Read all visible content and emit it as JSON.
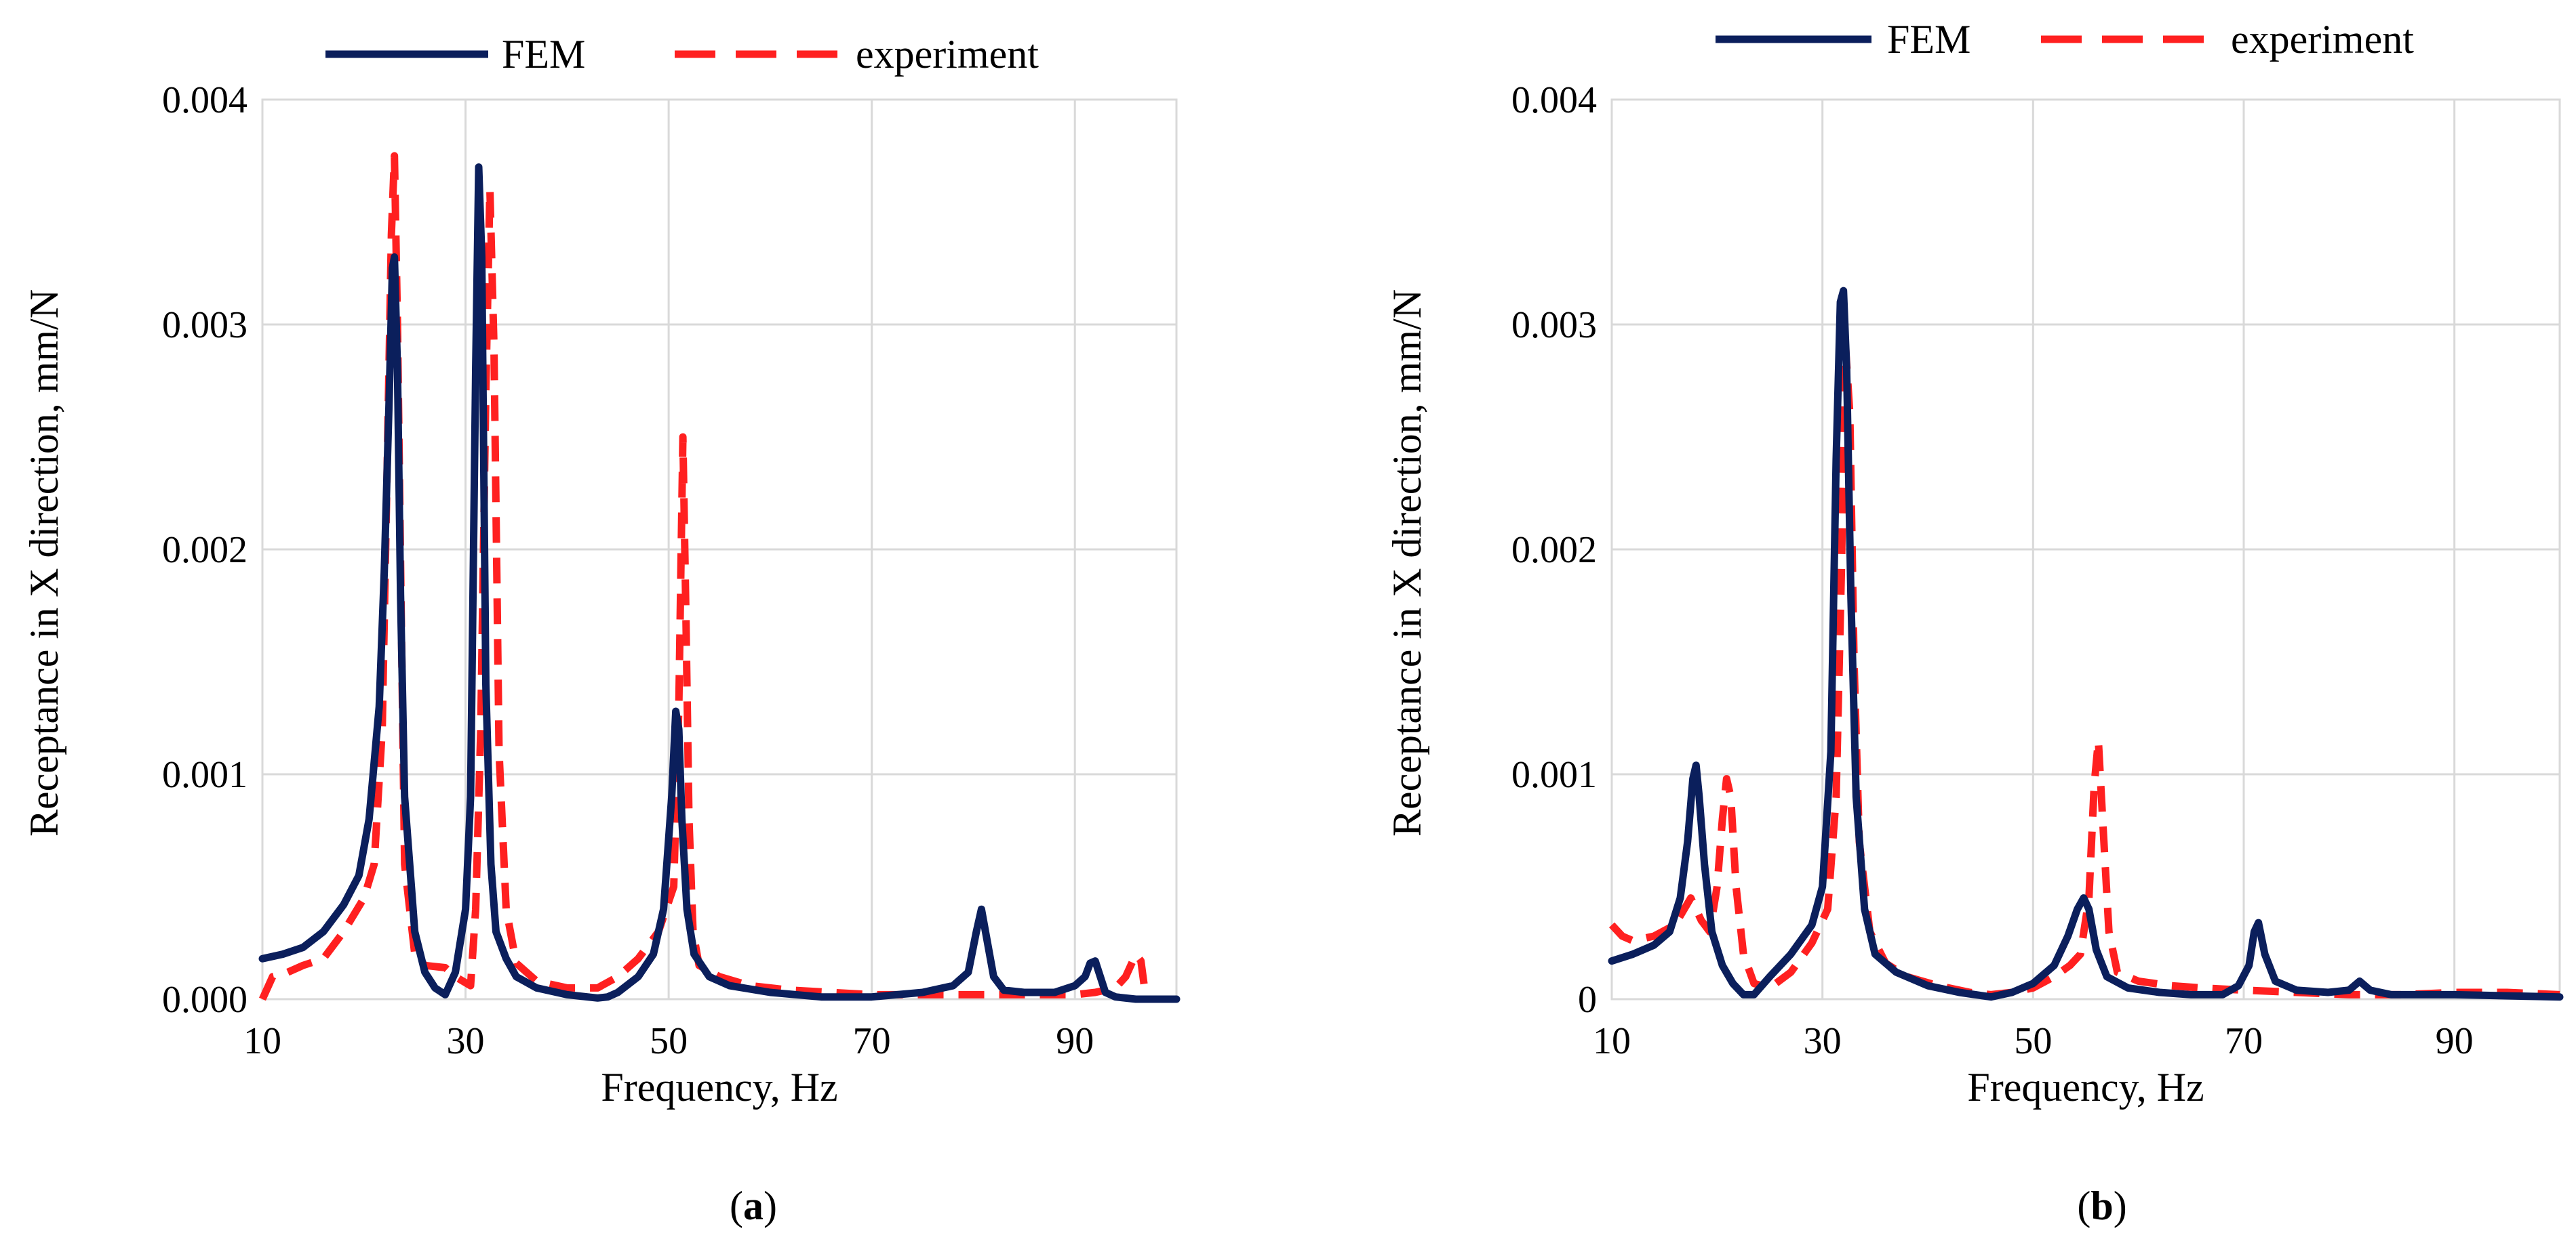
{
  "colors": {
    "fem": "#0b1f5c",
    "experiment": "#ff2020",
    "grid": "#d9d9d9"
  },
  "chart_data": [
    {
      "type": "line",
      "panel": "(a)",
      "panel_open": "(",
      "panel_letter": "a",
      "panel_close": ")",
      "xlabel": "Frequency, Hz",
      "ylabel": "Receptance in X direction, mm/N",
      "xlim": [
        10,
        100
      ],
      "ylim": [
        0,
        0.004
      ],
      "xticks": [
        10,
        30,
        50,
        70,
        90
      ],
      "xtick_labels": [
        "10",
        "30",
        "50",
        "70",
        "90"
      ],
      "xgrid": [
        30,
        50,
        70,
        90
      ],
      "yticks": [
        0,
        0.001,
        0.002,
        0.003,
        0.004
      ],
      "ytick_labels": [
        "0.000",
        "0.001",
        "0.002",
        "0.003",
        "0.004"
      ],
      "legend": [
        "FEM",
        "experiment"
      ],
      "series": [
        {
          "name": "FEM",
          "x": [
            10,
            12,
            14,
            16,
            18,
            19.5,
            20.5,
            21.5,
            22,
            22.5,
            22.8,
            23,
            23.3,
            23.6,
            24,
            25,
            26,
            27,
            28,
            29,
            30,
            30.5,
            31,
            31.3,
            31.6,
            32,
            32.5,
            33,
            34,
            35,
            37,
            40,
            42,
            43,
            44,
            45,
            47,
            48.5,
            49.5,
            50.3,
            50.7,
            51,
            51.3,
            51.8,
            52.5,
            54,
            56,
            60,
            65,
            70,
            75,
            78,
            79.5,
            80.3,
            80.8,
            81.2,
            82,
            83,
            85,
            88,
            90,
            91,
            91.5,
            92,
            92.5,
            93,
            94,
            96,
            100
          ],
          "y": [
            0.00018,
            0.0002,
            0.00023,
            0.0003,
            0.00042,
            0.00055,
            0.0008,
            0.0013,
            0.0019,
            0.0027,
            0.00325,
            0.0033,
            0.0028,
            0.0018,
            0.0009,
            0.0003,
            0.00012,
            5e-05,
            2e-05,
            0.00012,
            0.0004,
            0.0009,
            0.0028,
            0.0037,
            0.0033,
            0.0014,
            0.0006,
            0.0003,
            0.00018,
            0.0001,
            5e-05,
            2e-05,
            1e-05,
            5e-06,
            1e-05,
            3e-05,
            0.0001,
            0.0002,
            0.0004,
            0.0009,
            0.00128,
            0.0012,
            0.0008,
            0.0004,
            0.0002,
            0.0001,
            6e-05,
            3e-05,
            1e-05,
            1e-05,
            3e-05,
            6e-05,
            0.00012,
            0.0003,
            0.0004,
            0.0003,
            0.0001,
            4e-05,
            3e-05,
            3e-05,
            6e-05,
            0.0001,
            0.00016,
            0.00017,
            0.0001,
            3e-05,
            1e-05,
            0,
            0
          ]
        },
        {
          "name": "experiment",
          "x": [
            10,
            11,
            12,
            14,
            16,
            18,
            20,
            21,
            21.8,
            22.3,
            22.7,
            23,
            23.3,
            23.7,
            24,
            25,
            26,
            28,
            29,
            30.5,
            31,
            31.5,
            32,
            32.4,
            32.8,
            33.3,
            34,
            35,
            37,
            40,
            43,
            45,
            47,
            49,
            50.5,
            51,
            51.4,
            51.7,
            52,
            52.4,
            53,
            55,
            58,
            62,
            66,
            70,
            75,
            80,
            85,
            88,
            90,
            92,
            94,
            95,
            96,
            96.5,
            97
          ],
          "y": [
            0,
            0.0001,
            0.00011,
            0.00015,
            0.00018,
            0.0003,
            0.00045,
            0.0006,
            0.0012,
            0.0024,
            0.0034,
            0.00375,
            0.003,
            0.0016,
            0.0006,
            0.0002,
            0.00015,
            0.00014,
            0.0001,
            6e-05,
            0.0004,
            0.0012,
            0.0027,
            0.0036,
            0.0029,
            0.0011,
            0.0004,
            0.00016,
            8e-05,
            5e-05,
            5e-05,
            0.0001,
            0.00018,
            0.0003,
            0.0005,
            0.0013,
            0.0025,
            0.0017,
            0.0008,
            0.0003,
            0.00015,
            0.0001,
            6e-05,
            4e-05,
            3e-05,
            2e-05,
            2e-05,
            2e-05,
            2e-05,
            2e-05,
            2e-05,
            3e-05,
            5e-05,
            0.0001,
            0.0002,
            0.00017,
            0
          ]
        }
      ]
    },
    {
      "type": "line",
      "panel": "(b)",
      "panel_open": "(",
      "panel_letter": "b",
      "panel_close": ")",
      "xlabel": "Frequency, Hz",
      "ylabel": "Receptance in X direction, mm/N",
      "xlim": [
        10,
        100
      ],
      "ylim": [
        0,
        0.004
      ],
      "xticks": [
        10,
        30,
        50,
        70,
        90
      ],
      "xtick_labels": [
        "10",
        "30",
        "50",
        "70",
        "90"
      ],
      "xgrid": [
        30,
        50,
        70,
        90
      ],
      "yticks": [
        0,
        0.001,
        0.002,
        0.003,
        0.004
      ],
      "ytick_labels": [
        "0",
        "0.001",
        "0.002",
        "0.003",
        "0.004"
      ],
      "legend": [
        "FEM",
        "experiment"
      ],
      "series": [
        {
          "name": "FEM",
          "x": [
            10,
            12,
            14,
            15.5,
            16.5,
            17.2,
            17.7,
            18,
            18.3,
            18.8,
            19.5,
            20.5,
            21.5,
            22.5,
            23.5,
            25,
            27,
            29,
            30,
            30.8,
            31.3,
            31.7,
            32,
            32.3,
            32.7,
            33.2,
            34,
            35,
            37,
            40,
            43,
            46,
            48,
            50,
            52,
            53.3,
            54.2,
            54.8,
            55.3,
            56,
            57,
            59,
            62,
            65,
            68,
            69.5,
            70.5,
            71,
            71.4,
            72,
            73,
            75,
            78,
            80,
            81,
            82,
            84,
            90,
            100
          ],
          "y": [
            0.00017,
            0.0002,
            0.00024,
            0.0003,
            0.00045,
            0.0007,
            0.00098,
            0.00104,
            0.0009,
            0.0006,
            0.0003,
            0.00015,
            7e-05,
            2e-05,
            2e-05,
            0.0001,
            0.0002,
            0.00033,
            0.0005,
            0.0011,
            0.0024,
            0.0031,
            0.00315,
            0.0028,
            0.0018,
            0.0009,
            0.0004,
            0.0002,
            0.00012,
            6e-05,
            3e-05,
            1e-05,
            3e-05,
            7e-05,
            0.00015,
            0.00028,
            0.0004,
            0.00045,
            0.0004,
            0.00022,
            0.0001,
            5e-05,
            3e-05,
            2e-05,
            2e-05,
            6e-05,
            0.00015,
            0.0003,
            0.00034,
            0.0002,
            8e-05,
            4e-05,
            3e-05,
            4e-05,
            8e-05,
            4e-05,
            2e-05,
            2e-05,
            1e-05
          ]
        },
        {
          "name": "experiment",
          "x": [
            10,
            11,
            12,
            14,
            16,
            17.5,
            18.5,
            19.3,
            20,
            20.5,
            20.9,
            21.3,
            21.8,
            22.5,
            23.5,
            25,
            27,
            29,
            30.5,
            31.3,
            31.8,
            32.2,
            32.6,
            33,
            33.5,
            34.5,
            36,
            38,
            41,
            44,
            46,
            48,
            50,
            52,
            53.5,
            54.5,
            55.3,
            55.8,
            56.2,
            56.6,
            57.2,
            58,
            60,
            63,
            66,
            70,
            75,
            80,
            85,
            90,
            95,
            100
          ],
          "y": [
            0.00033,
            0.00028,
            0.00026,
            0.00028,
            0.00033,
            0.00045,
            0.00035,
            0.0003,
            0.0005,
            0.0008,
            0.00098,
            0.0009,
            0.0005,
            0.0002,
            7e-05,
            5e-05,
            0.00012,
            0.00025,
            0.0004,
            0.0009,
            0.0019,
            0.0029,
            0.0026,
            0.0015,
            0.0007,
            0.0003,
            0.00016,
            0.0001,
            6e-05,
            3e-05,
            2e-05,
            3e-05,
            5e-05,
            0.0001,
            0.00015,
            0.0002,
            0.00045,
            0.00095,
            0.00115,
            0.0008,
            0.0003,
            0.00012,
            8e-05,
            6e-05,
            5e-05,
            4e-05,
            3e-05,
            2e-05,
            2e-05,
            3e-05,
            3e-05,
            2e-05
          ]
        }
      ]
    }
  ]
}
